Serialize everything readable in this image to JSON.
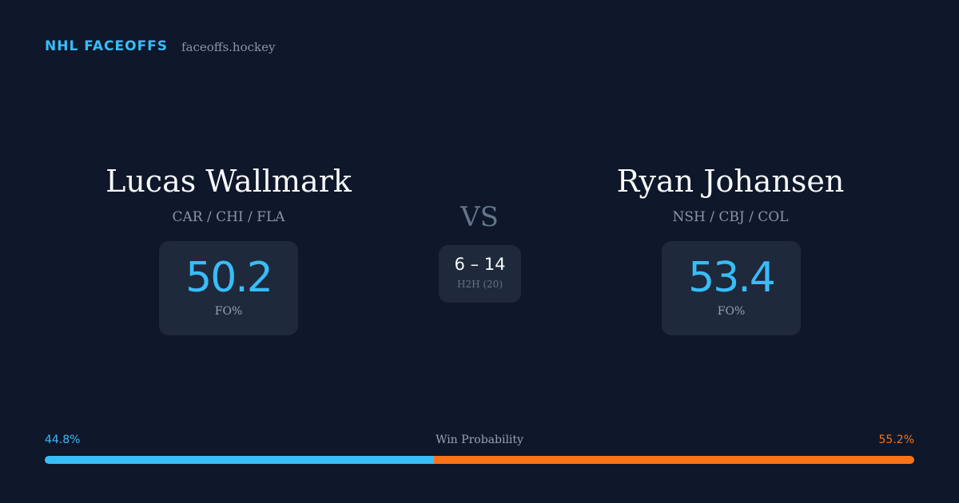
{
  "header": {
    "brand": "NHL FACEOFFS",
    "site": "faceoffs.hockey"
  },
  "players": [
    {
      "name": "Lucas Wallmark",
      "teams": "CAR / CHI / FLA",
      "fo_pct": 50.2,
      "fo_label": "FO%"
    },
    {
      "name": "Ryan Johansen",
      "teams": "NSH / CBJ / COL",
      "fo_pct": 53.4,
      "fo_label": "FO%"
    }
  ],
  "vs": "VS",
  "h2h": {
    "score": "6 – 14",
    "label": "H2H (20)"
  },
  "win_probability": {
    "label": "Win Probability",
    "values": [
      44.8,
      55.2
    ],
    "value_labels": [
      "44.8%",
      "55.2%"
    ],
    "colors": [
      "#38bdf8",
      "#f97316"
    ]
  }
}
